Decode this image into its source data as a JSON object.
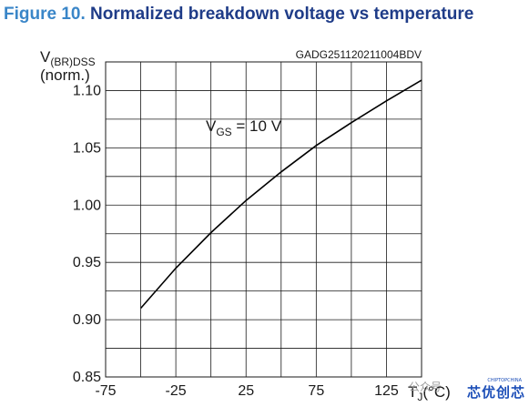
{
  "figure": {
    "number": "Figure 10.",
    "title": "Normalized breakdown voltage vs temperature",
    "code": "GADG251120211004BDV",
    "number_color": "#3a86c8",
    "title_color": "#1f3c88"
  },
  "chart_data": {
    "type": "line",
    "ylabel_main": "V",
    "ylabel_sub": "(BR)DSS",
    "ylabel_unit": "(norm.)",
    "xlabel_main": "T",
    "xlabel_sub": "J",
    "xlabel_unit": "(°C)",
    "annotation_main": "V",
    "annotation_sub": "GS",
    "annotation_value": " = 10 V",
    "xlim": [
      -75,
      150
    ],
    "ylim": [
      0.85,
      1.125
    ],
    "x_ticks": [
      -75,
      -25,
      25,
      75,
      125
    ],
    "x_tick_labels": [
      "-75",
      "-25",
      "25",
      "75",
      "125"
    ],
    "y_ticks": [
      0.85,
      0.9,
      0.95,
      1.0,
      1.05,
      1.1
    ],
    "y_tick_labels": [
      "0.85",
      "0.90",
      "0.95",
      "1.00",
      "1.05",
      "1.10"
    ],
    "x_grid": [
      -75,
      -50,
      -25,
      0,
      25,
      50,
      75,
      100,
      125,
      150
    ],
    "y_grid": [
      0.85,
      0.875,
      0.9,
      0.925,
      0.95,
      0.975,
      1.0,
      1.025,
      1.05,
      1.075,
      1.1,
      1.125
    ],
    "grid": true,
    "series": [
      {
        "x": [
          -50,
          -25,
          0,
          25,
          50,
          75,
          100,
          125,
          150
        ],
        "y": [
          0.91,
          0.945,
          0.976,
          1.004,
          1.029,
          1.052,
          1.072,
          1.091,
          1.109
        ]
      }
    ]
  },
  "watermark": {
    "wechat_text": "公众号",
    "brand_text": "芯优创芯",
    "brand_sub": "CHIPTOPCHINA"
  }
}
